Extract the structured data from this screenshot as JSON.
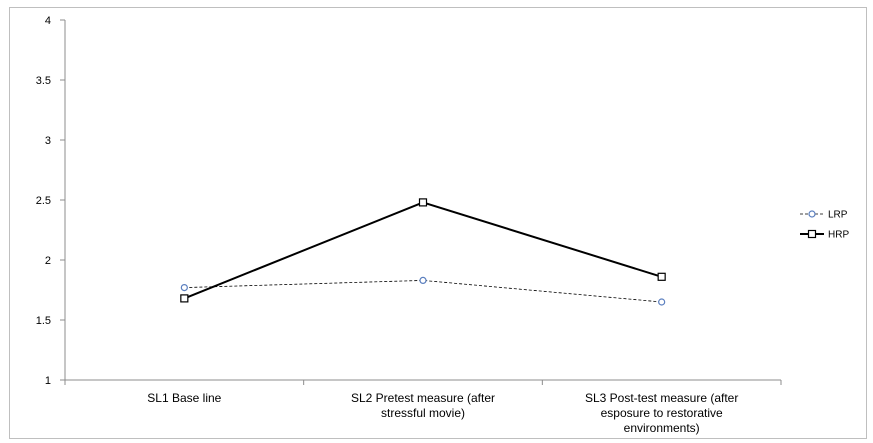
{
  "chart_data": {
    "type": "line",
    "categories": [
      [
        "SL1 Base line"
      ],
      [
        "SL2 Pretest measure (after",
        "stressful movie)"
      ],
      [
        "SL3 Post-test measure (after",
        "esposure to restorative",
        "environments)"
      ]
    ],
    "ylim": [
      1,
      4
    ],
    "yticks": [
      "1",
      "1.5",
      "2",
      "2.5",
      "3",
      "3.5",
      "4"
    ],
    "yticks_values": [
      1,
      1.5,
      2,
      2.5,
      3,
      3.5,
      4
    ],
    "grid": false,
    "legend_position": "right",
    "series": [
      {
        "name": "LRP",
        "values": [
          1.77,
          1.83,
          1.65
        ],
        "color": "#000000",
        "marker": "circle",
        "marker_color": "#5b7fbf",
        "line_style": "dashed"
      },
      {
        "name": "HRP",
        "values": [
          1.68,
          2.48,
          1.86
        ],
        "color": "#000000",
        "marker": "square",
        "marker_color": "#000000",
        "line_style": "solid"
      }
    ]
  }
}
